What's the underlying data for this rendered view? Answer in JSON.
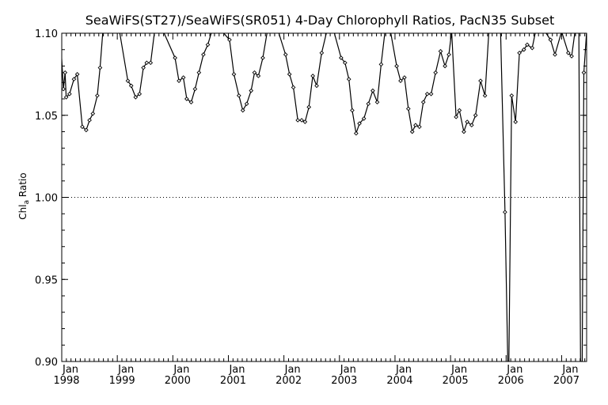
{
  "chart_data": {
    "type": "line",
    "title": "SeaWiFS(ST27)/SeaWiFS(SR051) 4-Day Chlorophyll Ratios, PacN35 Subset",
    "ylabel": "Chl",
    "ylabel_subscript": "a",
    "ylabel_suffix": " Ratio",
    "xlim": [
      1998.0,
      2007.45
    ],
    "ylim": [
      0.9,
      1.1
    ],
    "yticks": [
      "0.90",
      "0.95",
      "1.00",
      "1.05",
      "1.10"
    ],
    "xticks": [
      {
        "month": "Jan",
        "year": "1998",
        "x": 1998.0
      },
      {
        "month": "Jan",
        "year": "1999",
        "x": 1999.0
      },
      {
        "month": "Jan",
        "year": "2000",
        "x": 2000.0
      },
      {
        "month": "Jan",
        "year": "2001",
        "x": 2001.0
      },
      {
        "month": "Jan",
        "year": "2002",
        "x": 2002.0
      },
      {
        "month": "Jan",
        "year": "2003",
        "x": 2003.0
      },
      {
        "month": "Jan",
        "year": "2004",
        "x": 2004.0
      },
      {
        "month": "Jan",
        "year": "2005",
        "x": 2005.0
      },
      {
        "month": "Jan",
        "year": "2006",
        "x": 2006.0
      },
      {
        "month": "Jan",
        "year": "2007",
        "x": 2007.0
      }
    ],
    "reference_line": 1.0,
    "grid": false,
    "series": [
      {
        "x": [
          1997.97,
          1998.03,
          1998.06,
          1998.08,
          1998.14,
          1998.22,
          1998.28,
          1998.37,
          1998.44,
          1998.5,
          1998.56,
          1998.64,
          1998.69,
          1998.74,
          1998.81,
          1998.89,
          1999.04,
          1999.19,
          1999.25,
          1999.33,
          1999.4,
          1999.47,
          1999.53,
          1999.6,
          1999.67,
          1999.75,
          1999.83,
          2000.04,
          2000.11,
          2000.19,
          2000.25,
          2000.33,
          2000.4,
          2000.47,
          2000.55,
          2000.63,
          2000.7,
          2000.77,
          2000.83,
          2000.89,
          2001.02,
          2001.1,
          2001.19,
          2001.26,
          2001.33,
          2001.41,
          2001.47,
          2001.54,
          2001.62,
          2001.7,
          2001.78,
          2001.84,
          2001.9,
          2002.03,
          2002.1,
          2002.17,
          2002.25,
          2002.32,
          2002.38,
          2002.45,
          2002.52,
          2002.59,
          2002.68,
          2002.77,
          2002.83,
          2002.9,
          2003.03,
          2003.1,
          2003.17,
          2003.23,
          2003.3,
          2003.36,
          2003.44,
          2003.52,
          2003.6,
          2003.68,
          2003.75,
          2003.82,
          2003.92,
          2004.03,
          2004.1,
          2004.17,
          2004.24,
          2004.31,
          2004.37,
          2004.44,
          2004.51,
          2004.58,
          2004.65,
          2004.73,
          2004.82,
          2004.9,
          2004.97,
          2005.02,
          2005.1,
          2005.16,
          2005.24,
          2005.3,
          2005.38,
          2005.45,
          2005.54,
          2005.62,
          2005.69,
          2005.81,
          2005.9,
          2005.98,
          2006.03,
          2006.05,
          2006.1,
          2006.17,
          2006.24,
          2006.32,
          2006.38,
          2006.47,
          2006.53,
          2006.62,
          2006.7,
          2006.8,
          2006.88,
          2007.0,
          2007.12,
          2007.18,
          2007.24,
          2007.28,
          2007.31,
          2007.34,
          2007.37,
          2007.4,
          2007.45
        ],
        "y": [
          1.102,
          1.066,
          1.076,
          1.061,
          1.063,
          1.072,
          1.075,
          1.043,
          1.041,
          1.047,
          1.051,
          1.062,
          1.079,
          1.101,
          1.101,
          1.101,
          1.101,
          1.071,
          1.068,
          1.061,
          1.063,
          1.079,
          1.082,
          1.082,
          1.101,
          1.101,
          1.101,
          1.085,
          1.071,
          1.073,
          1.06,
          1.058,
          1.066,
          1.076,
          1.087,
          1.093,
          1.101,
          1.101,
          1.101,
          1.101,
          1.096,
          1.075,
          1.062,
          1.053,
          1.057,
          1.065,
          1.076,
          1.074,
          1.085,
          1.101,
          1.101,
          1.101,
          1.101,
          1.087,
          1.075,
          1.067,
          1.047,
          1.047,
          1.046,
          1.055,
          1.074,
          1.068,
          1.088,
          1.101,
          1.101,
          1.101,
          1.085,
          1.082,
          1.072,
          1.053,
          1.039,
          1.045,
          1.048,
          1.057,
          1.065,
          1.058,
          1.081,
          1.101,
          1.101,
          1.08,
          1.071,
          1.073,
          1.054,
          1.04,
          1.044,
          1.043,
          1.058,
          1.063,
          1.063,
          1.076,
          1.089,
          1.08,
          1.087,
          1.101,
          1.049,
          1.053,
          1.04,
          1.046,
          1.044,
          1.05,
          1.071,
          1.062,
          1.101,
          1.101,
          1.101,
          0.991,
          0.9,
          0.9,
          1.062,
          1.046,
          1.088,
          1.09,
          1.093,
          1.091,
          1.101,
          1.101,
          1.101,
          1.096,
          1.087,
          1.101,
          1.088,
          1.086,
          1.101,
          1.101,
          1.101,
          0.9,
          0.9,
          1.076,
          1.101
        ]
      }
    ]
  }
}
